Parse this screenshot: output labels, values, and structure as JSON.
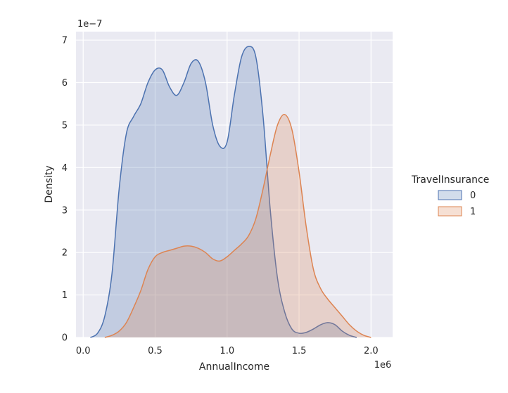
{
  "chart_data": {
    "type": "area",
    "xlabel": "AnnualIncome",
    "ylabel": "Density",
    "x_offset_label": "1e6",
    "y_offset_label": "1e−7",
    "xlim": [
      -0.05,
      2.15
    ],
    "ylim": [
      0,
      7.2
    ],
    "xticks": [
      0.0,
      0.5,
      1.0,
      1.5,
      2.0
    ],
    "xtick_labels": [
      "0.0",
      "0.5",
      "1.0",
      "1.5",
      "2.0"
    ],
    "yticks": [
      0,
      1,
      2,
      3,
      4,
      5,
      6,
      7
    ],
    "ytick_labels": [
      "0",
      "1",
      "2",
      "3",
      "4",
      "5",
      "6",
      "7"
    ],
    "grid": true,
    "legend": {
      "title": "TravelInsurance",
      "placement": "outside-right",
      "items": [
        "0",
        "1"
      ]
    },
    "series": [
      {
        "name": "0",
        "color": "#4c72b0",
        "x": [
          0.05,
          0.1,
          0.15,
          0.2,
          0.25,
          0.3,
          0.35,
          0.4,
          0.45,
          0.5,
          0.55,
          0.6,
          0.65,
          0.7,
          0.75,
          0.8,
          0.85,
          0.9,
          0.95,
          1.0,
          1.05,
          1.1,
          1.15,
          1.2,
          1.25,
          1.3,
          1.35,
          1.4,
          1.45,
          1.5,
          1.55,
          1.6,
          1.65,
          1.7,
          1.75,
          1.8,
          1.85,
          1.9
        ],
        "y": [
          0.0,
          0.1,
          0.5,
          1.5,
          3.5,
          4.8,
          5.2,
          5.5,
          6.0,
          6.3,
          6.3,
          5.9,
          5.7,
          6.0,
          6.45,
          6.5,
          6.0,
          5.0,
          4.5,
          4.6,
          5.7,
          6.6,
          6.85,
          6.6,
          5.2,
          3.0,
          1.4,
          0.6,
          0.2,
          0.1,
          0.12,
          0.2,
          0.3,
          0.35,
          0.3,
          0.15,
          0.05,
          0.0
        ]
      },
      {
        "name": "1",
        "color": "#dd8452",
        "x": [
          0.15,
          0.2,
          0.25,
          0.3,
          0.35,
          0.4,
          0.45,
          0.5,
          0.55,
          0.6,
          0.65,
          0.7,
          0.75,
          0.8,
          0.85,
          0.9,
          0.95,
          1.0,
          1.05,
          1.1,
          1.15,
          1.2,
          1.25,
          1.3,
          1.35,
          1.4,
          1.45,
          1.5,
          1.55,
          1.6,
          1.65,
          1.7,
          1.75,
          1.8,
          1.85,
          1.9,
          1.95,
          2.0
        ],
        "y": [
          0.0,
          0.05,
          0.15,
          0.35,
          0.7,
          1.1,
          1.6,
          1.9,
          2.0,
          2.05,
          2.1,
          2.15,
          2.15,
          2.1,
          2.0,
          1.85,
          1.8,
          1.9,
          2.05,
          2.2,
          2.4,
          2.8,
          3.5,
          4.3,
          5.0,
          5.25,
          4.9,
          3.9,
          2.6,
          1.6,
          1.15,
          0.9,
          0.7,
          0.5,
          0.3,
          0.15,
          0.05,
          0.0
        ]
      }
    ]
  }
}
